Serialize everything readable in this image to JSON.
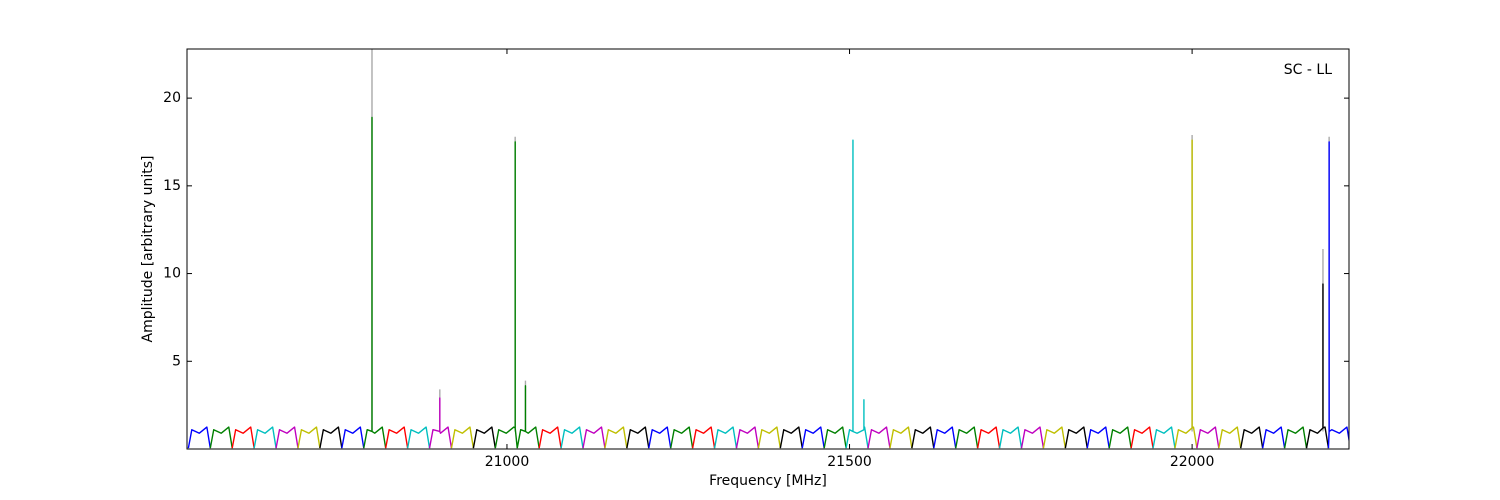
{
  "chart_data": {
    "type": "line",
    "annotation": "SC - LL",
    "x_label": "Frequency [MHz]",
    "y_label": "Amplitude [arbitrary units]",
    "xlim": [
      20533,
      22229
    ],
    "ylim": [
      0,
      22.8
    ],
    "xticks": [
      21000,
      21500,
      22000
    ],
    "yticks": [
      5,
      10,
      15,
      20
    ],
    "series": [
      {
        "color": "#aaaaaa",
        "x": [
          20803,
          20803,
          20803,
          20902,
          20902,
          20902,
          21012,
          21012,
          21012,
          21027,
          21027,
          21027,
          22000,
          22000,
          22000,
          22191,
          22191,
          22191,
          22200,
          22200,
          22200
        ],
        "values": [
          1,
          22.8,
          null,
          1,
          3.4,
          null,
          1,
          17.8,
          null,
          1,
          3.9,
          null,
          1,
          17.9,
          null,
          1,
          11.4,
          null,
          1,
          17.8,
          null
        ]
      },
      {
        "color": "#0000ff",
        "x": [
          20535,
          20540,
          20551,
          20562,
          20567
        ],
        "values": [
          0.05,
          1.1,
          0.9,
          1.25,
          0.05
        ]
      },
      {
        "color": "#008000",
        "x": [
          20567,
          20572,
          20583,
          20594,
          20599
        ],
        "values": [
          0.05,
          1.1,
          0.9,
          1.25,
          0.05
        ]
      },
      {
        "color": "#ff0000",
        "x": [
          20599,
          20604,
          20615,
          20626,
          20631
        ],
        "values": [
          0.05,
          1.1,
          0.9,
          1.25,
          0.05
        ]
      },
      {
        "color": "#00bfbf",
        "x": [
          20631,
          20636,
          20647,
          20658,
          20663
        ],
        "values": [
          0.05,
          1.1,
          0.9,
          1.25,
          0.05
        ]
      },
      {
        "color": "#bf00bf",
        "x": [
          20663,
          20668,
          20679,
          20690,
          20695
        ],
        "values": [
          0.05,
          1.1,
          0.9,
          1.25,
          0.05
        ]
      },
      {
        "color": "#bfbf00",
        "x": [
          20695,
          20700,
          20711,
          20722,
          20727
        ],
        "values": [
          0.05,
          1.1,
          0.9,
          1.25,
          0.05
        ]
      },
      {
        "color": "#000000",
        "x": [
          20727,
          20732,
          20743,
          20754,
          20759
        ],
        "values": [
          0.05,
          1.1,
          0.9,
          1.25,
          0.05
        ]
      },
      {
        "color": "#0000ff",
        "x": [
          20759,
          20764,
          20775,
          20786,
          20791
        ],
        "values": [
          0.05,
          1.1,
          0.9,
          1.25,
          0.05
        ]
      },
      {
        "color": "#008000",
        "x": [
          20791,
          20796,
          20803,
          20803,
          20803,
          20807,
          20818,
          20823
        ],
        "values": [
          0.05,
          1.1,
          1.0,
          18.9,
          1.0,
          0.9,
          1.25,
          0.05
        ]
      },
      {
        "color": "#ff0000",
        "x": [
          20823,
          20828,
          20839,
          20850,
          20855
        ],
        "values": [
          0.05,
          1.1,
          0.9,
          1.25,
          0.05
        ]
      },
      {
        "color": "#00bfbf",
        "x": [
          20855,
          20860,
          20871,
          20882,
          20887
        ],
        "values": [
          0.05,
          1.1,
          0.9,
          1.25,
          0.05
        ]
      },
      {
        "color": "#bf00bf",
        "x": [
          20887,
          20892,
          20902,
          20902,
          20902,
          20903,
          20914,
          20919
        ],
        "values": [
          0.05,
          1.1,
          1.0,
          2.9,
          1.0,
          0.9,
          1.25,
          0.05
        ]
      },
      {
        "color": "#bfbf00",
        "x": [
          20919,
          20924,
          20935,
          20946,
          20951
        ],
        "values": [
          0.05,
          1.1,
          0.9,
          1.25,
          0.05
        ]
      },
      {
        "color": "#000000",
        "x": [
          20951,
          20956,
          20967,
          20978,
          20983
        ],
        "values": [
          0.05,
          1.1,
          0.9,
          1.25,
          0.05
        ]
      },
      {
        "color": "#008000",
        "x": [
          20983,
          20988,
          20999,
          21010,
          21012,
          21012,
          21012,
          21015
        ],
        "values": [
          0.05,
          1.1,
          0.9,
          1.25,
          1.2,
          17.5,
          1.2,
          0.05
        ]
      },
      {
        "color": "#008000",
        "x": [
          21015,
          21020,
          21027,
          21027,
          21027,
          21031,
          21042,
          21047
        ],
        "values": [
          0.05,
          1.1,
          1.0,
          3.6,
          1.0,
          0.9,
          1.25,
          0.05
        ]
      },
      {
        "color": "#ff0000",
        "x": [
          21047,
          21052,
          21063,
          21074,
          21079
        ],
        "values": [
          0.05,
          1.1,
          0.9,
          1.25,
          0.05
        ]
      },
      {
        "color": "#00bfbf",
        "x": [
          21079,
          21084,
          21095,
          21106,
          21111
        ],
        "values": [
          0.05,
          1.1,
          0.9,
          1.25,
          0.05
        ]
      },
      {
        "color": "#bf00bf",
        "x": [
          21111,
          21116,
          21127,
          21138,
          21143
        ],
        "values": [
          0.05,
          1.1,
          0.9,
          1.25,
          0.05
        ]
      },
      {
        "color": "#bfbf00",
        "x": [
          21143,
          21148,
          21159,
          21170,
          21175
        ],
        "values": [
          0.05,
          1.1,
          0.9,
          1.25,
          0.05
        ]
      },
      {
        "color": "#000000",
        "x": [
          21175,
          21180,
          21191,
          21202,
          21207
        ],
        "values": [
          0.05,
          1.1,
          0.9,
          1.25,
          0.05
        ]
      },
      {
        "color": "#0000ff",
        "x": [
          21207,
          21212,
          21223,
          21234,
          21239
        ],
        "values": [
          0.05,
          1.1,
          0.9,
          1.25,
          0.05
        ]
      },
      {
        "color": "#008000",
        "x": [
          21239,
          21244,
          21255,
          21266,
          21271
        ],
        "values": [
          0.05,
          1.1,
          0.9,
          1.25,
          0.05
        ]
      },
      {
        "color": "#ff0000",
        "x": [
          21271,
          21276,
          21287,
          21298,
          21303
        ],
        "values": [
          0.05,
          1.1,
          0.9,
          1.25,
          0.05
        ]
      },
      {
        "color": "#00bfbf",
        "x": [
          21303,
          21308,
          21319,
          21330,
          21335
        ],
        "values": [
          0.05,
          1.1,
          0.9,
          1.25,
          0.05
        ]
      },
      {
        "color": "#bf00bf",
        "x": [
          21335,
          21340,
          21351,
          21362,
          21367
        ],
        "values": [
          0.05,
          1.1,
          0.9,
          1.25,
          0.05
        ]
      },
      {
        "color": "#bfbf00",
        "x": [
          21367,
          21372,
          21383,
          21394,
          21399
        ],
        "values": [
          0.05,
          1.1,
          0.9,
          1.25,
          0.05
        ]
      },
      {
        "color": "#000000",
        "x": [
          21399,
          21404,
          21415,
          21426,
          21431
        ],
        "values": [
          0.05,
          1.1,
          0.9,
          1.25,
          0.05
        ]
      },
      {
        "color": "#0000ff",
        "x": [
          21431,
          21436,
          21447,
          21458,
          21463
        ],
        "values": [
          0.05,
          1.1,
          0.9,
          1.25,
          0.05
        ]
      },
      {
        "color": "#008000",
        "x": [
          21463,
          21468,
          21479,
          21490,
          21495
        ],
        "values": [
          0.05,
          1.1,
          0.9,
          1.25,
          0.05
        ]
      },
      {
        "color": "#00bfbf",
        "x": [
          21495,
          21500,
          21505,
          21505,
          21505,
          21511,
          21521,
          21521,
          21521,
          21522,
          21527
        ],
        "values": [
          0.05,
          1.1,
          1.0,
          17.6,
          1.0,
          0.9,
          1.1,
          2.8,
          1.1,
          1.25,
          0.05
        ]
      },
      {
        "color": "#bf00bf",
        "x": [
          21527,
          21532,
          21543,
          21554,
          21559
        ],
        "values": [
          0.05,
          1.1,
          0.9,
          1.25,
          0.05
        ]
      },
      {
        "color": "#bfbf00",
        "x": [
          21559,
          21564,
          21575,
          21586,
          21591
        ],
        "values": [
          0.05,
          1.1,
          0.9,
          1.25,
          0.05
        ]
      },
      {
        "color": "#000000",
        "x": [
          21591,
          21596,
          21607,
          21618,
          21623
        ],
        "values": [
          0.05,
          1.1,
          0.9,
          1.25,
          0.05
        ]
      },
      {
        "color": "#0000ff",
        "x": [
          21623,
          21628,
          21639,
          21650,
          21655
        ],
        "values": [
          0.05,
          1.1,
          0.9,
          1.25,
          0.05
        ]
      },
      {
        "color": "#008000",
        "x": [
          21655,
          21660,
          21671,
          21682,
          21687
        ],
        "values": [
          0.05,
          1.1,
          0.9,
          1.25,
          0.05
        ]
      },
      {
        "color": "#ff0000",
        "x": [
          21687,
          21692,
          21703,
          21714,
          21719
        ],
        "values": [
          0.05,
          1.1,
          0.9,
          1.25,
          0.05
        ]
      },
      {
        "color": "#00bfbf",
        "x": [
          21719,
          21724,
          21735,
          21746,
          21751
        ],
        "values": [
          0.05,
          1.1,
          0.9,
          1.25,
          0.05
        ]
      },
      {
        "color": "#bf00bf",
        "x": [
          21751,
          21756,
          21767,
          21778,
          21783
        ],
        "values": [
          0.05,
          1.1,
          0.9,
          1.25,
          0.05
        ]
      },
      {
        "color": "#bfbf00",
        "x": [
          21783,
          21788,
          21799,
          21810,
          21815
        ],
        "values": [
          0.05,
          1.1,
          0.9,
          1.25,
          0.05
        ]
      },
      {
        "color": "#000000",
        "x": [
          21815,
          21820,
          21831,
          21842,
          21847
        ],
        "values": [
          0.05,
          1.1,
          0.9,
          1.25,
          0.05
        ]
      },
      {
        "color": "#0000ff",
        "x": [
          21847,
          21852,
          21863,
          21874,
          21879
        ],
        "values": [
          0.05,
          1.1,
          0.9,
          1.25,
          0.05
        ]
      },
      {
        "color": "#008000",
        "x": [
          21879,
          21884,
          21895,
          21906,
          21911
        ],
        "values": [
          0.05,
          1.1,
          0.9,
          1.25,
          0.05
        ]
      },
      {
        "color": "#ff0000",
        "x": [
          21911,
          21916,
          21927,
          21938,
          21943
        ],
        "values": [
          0.05,
          1.1,
          0.9,
          1.25,
          0.05
        ]
      },
      {
        "color": "#00bfbf",
        "x": [
          21943,
          21948,
          21959,
          21970,
          21975
        ],
        "values": [
          0.05,
          1.1,
          0.9,
          1.25,
          0.05
        ]
      },
      {
        "color": "#bfbf00",
        "x": [
          21975,
          21980,
          21991,
          22000,
          22000,
          22000,
          22002,
          22007
        ],
        "values": [
          0.05,
          1.1,
          0.9,
          1.2,
          17.6,
          1.2,
          1.25,
          0.05
        ]
      },
      {
        "color": "#bf00bf",
        "x": [
          22007,
          22012,
          22023,
          22034,
          22039
        ],
        "values": [
          0.05,
          1.1,
          0.9,
          1.25,
          0.05
        ]
      },
      {
        "color": "#bfbf00",
        "x": [
          22039,
          22044,
          22055,
          22066,
          22071
        ],
        "values": [
          0.05,
          1.1,
          0.9,
          1.25,
          0.05
        ]
      },
      {
        "color": "#000000",
        "x": [
          22071,
          22076,
          22087,
          22098,
          22103
        ],
        "values": [
          0.05,
          1.1,
          0.9,
          1.25,
          0.05
        ]
      },
      {
        "color": "#0000ff",
        "x": [
          22103,
          22108,
          22119,
          22130,
          22135
        ],
        "values": [
          0.05,
          1.1,
          0.9,
          1.25,
          0.05
        ]
      },
      {
        "color": "#008000",
        "x": [
          22135,
          22140,
          22151,
          22162,
          22167
        ],
        "values": [
          0.05,
          1.1,
          0.9,
          1.25,
          0.05
        ]
      },
      {
        "color": "#000000",
        "x": [
          22167,
          22172,
          22183,
          22191,
          22191,
          22191,
          22194,
          22199
        ],
        "values": [
          0.05,
          1.1,
          0.9,
          1.2,
          9.4,
          1.2,
          1.25,
          0.05
        ]
      },
      {
        "color": "#0000ff",
        "x": [
          22199,
          22200,
          22200,
          22200,
          22204,
          22215,
          22226,
          22231
        ],
        "values": [
          0.05,
          1.0,
          17.5,
          1.0,
          1.1,
          0.9,
          1.25,
          0.05
        ]
      }
    ]
  }
}
